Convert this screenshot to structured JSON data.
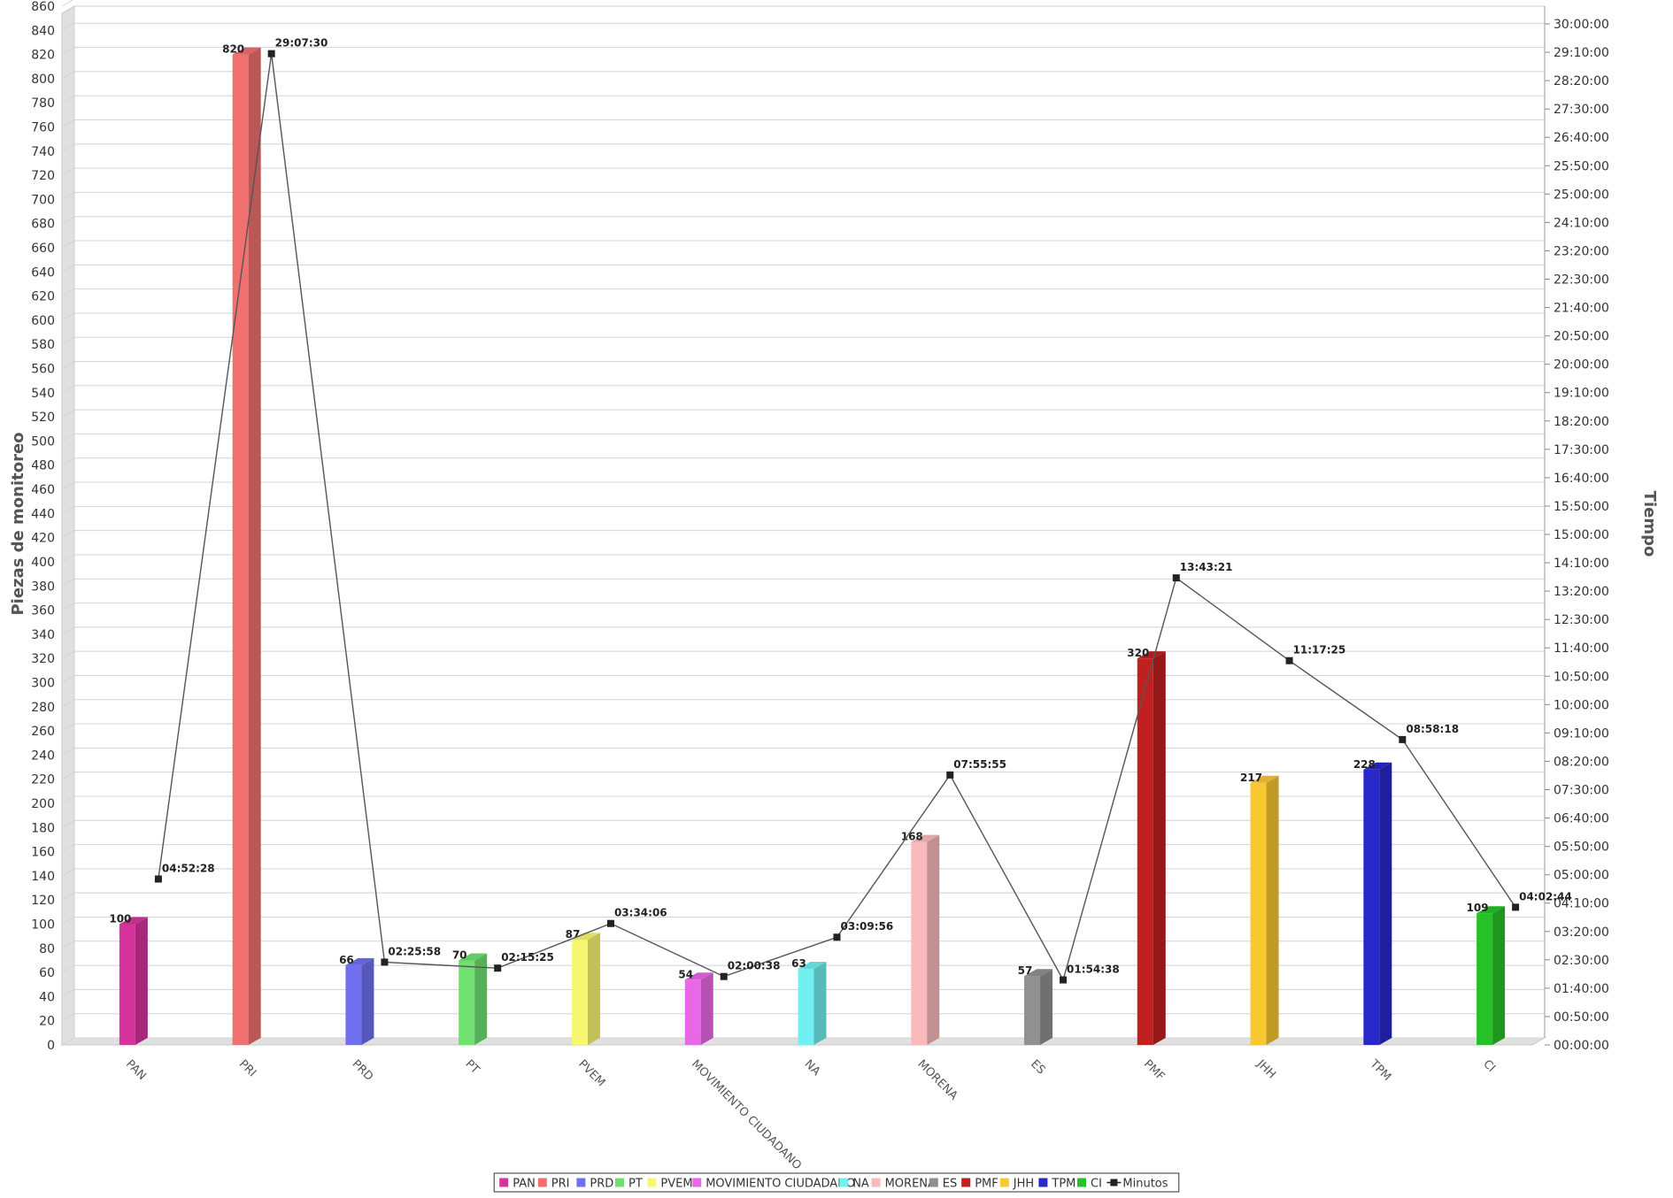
{
  "chart_data": {
    "type": "bar",
    "title": "",
    "ylabel": "Piezas de monitoreo",
    "y2label": "Tiempo",
    "ylim": [
      0,
      860
    ],
    "y_ticks": [
      0,
      20,
      40,
      60,
      80,
      100,
      120,
      140,
      160,
      180,
      200,
      220,
      240,
      260,
      280,
      300,
      320,
      340,
      360,
      380,
      400,
      420,
      440,
      460,
      480,
      500,
      520,
      540,
      560,
      580,
      600,
      620,
      640,
      660,
      680,
      700,
      720,
      740,
      760,
      780,
      800,
      820,
      840,
      860
    ],
    "y2_ticks": [
      "00:00:00",
      "00:50:00",
      "01:40:00",
      "02:30:00",
      "03:20:00",
      "04:10:00",
      "05:00:00",
      "05:50:00",
      "06:40:00",
      "07:30:00",
      "08:20:00",
      "09:10:00",
      "10:00:00",
      "10:50:00",
      "11:40:00",
      "12:30:00",
      "13:20:00",
      "14:10:00",
      "15:00:00",
      "15:50:00",
      "16:40:00",
      "17:30:00",
      "18:20:00",
      "19:10:00",
      "20:00:00",
      "20:50:00",
      "21:40:00",
      "22:30:00",
      "23:20:00",
      "24:10:00",
      "25:00:00",
      "25:50:00",
      "26:40:00",
      "27:30:00",
      "28:20:00",
      "29:10:00",
      "30:00:00"
    ],
    "categories": [
      "PAN",
      "PRI",
      "PRD",
      "PT",
      "PVEM",
      "MOVIMIENTO CIUDADANO",
      "NA",
      "MORENA",
      "ES",
      "PMF",
      "JHH",
      "TPM",
      "CI"
    ],
    "values": [
      100,
      820,
      66,
      70,
      87,
      54,
      63,
      168,
      57,
      320,
      217,
      228,
      109
    ],
    "bar_labels": [
      "100",
      "820",
      "66",
      "70",
      "87",
      "54",
      "63",
      "168",
      "57",
      "320",
      "217",
      "228",
      "109"
    ],
    "colors": [
      "#d6339c",
      "#f07070",
      "#7070f0",
      "#70e070",
      "#f8f870",
      "#e868e8",
      "#70f0f0",
      "#f8baba",
      "#909090",
      "#c02020",
      "#f8c830",
      "#2828c8",
      "#28c028"
    ],
    "series": [
      {
        "name": "Minutos",
        "axis": "secondary",
        "values": [
          "04:52:28",
          "29:07:30",
          "02:25:58",
          "02:15:25",
          "03:34:06",
          "02:00:38",
          "03:09:56",
          "07:55:55",
          "01:54:38",
          "13:43:21",
          "11:17:25",
          "08:58:18",
          "04:02:44"
        ],
        "color": "#333333"
      }
    ],
    "legend": {
      "position": "bottom",
      "items": [
        "PAN",
        "PRI",
        "PRD",
        "PT",
        "PVEM",
        "MOVIMIENTO CIUDADANO",
        "NA",
        "MORENA",
        "ES",
        "PMF",
        "JHH",
        "TPM",
        "CI",
        "Minutos"
      ]
    },
    "grid": true
  }
}
